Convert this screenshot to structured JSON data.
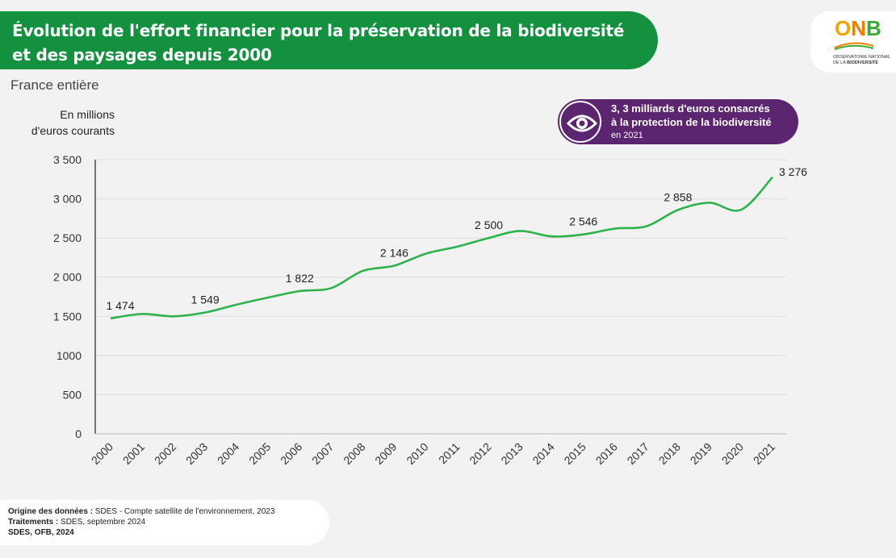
{
  "header": {
    "title_line1": "Évolution de l'effort financier pour la préservation de la biodiversité",
    "title_line2": "et des paysages depuis 2000",
    "accent_color": "#13913f"
  },
  "logo": {
    "letters": [
      "O",
      "N",
      "B"
    ],
    "subtitle_line1": "OBSERVATOIRE NATIONAL",
    "subtitle_line2a": "DE LA ",
    "subtitle_line2b": "BIODIVERSITÉ"
  },
  "subtitle": "France entière",
  "unit_label": {
    "line1": "En millions",
    "line2": "d'euros courants"
  },
  "callout": {
    "icon": "eye-icon",
    "line1": "3, 3 milliards d'euros consacrés",
    "line2": "à la protection de la biodiversité",
    "line3": "en 2021",
    "color": "#5b2570"
  },
  "chart_data": {
    "type": "line",
    "title": "",
    "xlabel": "",
    "ylabel": "",
    "ylim": [
      0,
      3500
    ],
    "yticks": [
      0,
      500,
      1000,
      1500,
      2000,
      2500,
      3000,
      3500
    ],
    "ytick_labels": [
      "0",
      "500",
      "1000",
      "1 500",
      "2 000",
      "2 500",
      "3 000",
      "3 500"
    ],
    "categories": [
      "2000",
      "2001",
      "2002",
      "2003",
      "2004",
      "2005",
      "2006",
      "2007",
      "2008",
      "2009",
      "2010",
      "2011",
      "2012",
      "2013",
      "2014",
      "2015",
      "2016",
      "2017",
      "2018",
      "2019",
      "2020",
      "2021"
    ],
    "series": [
      {
        "color": "#2db34a",
        "values": [
          1474,
          1530,
          1500,
          1549,
          1650,
          1740,
          1822,
          1860,
          2080,
          2146,
          2300,
          2390,
          2500,
          2590,
          2520,
          2546,
          2620,
          2650,
          2858,
          2950,
          2860,
          3276
        ]
      }
    ],
    "data_labels": [
      {
        "index": 0,
        "text": "1 474"
      },
      {
        "index": 3,
        "text": "1 549"
      },
      {
        "index": 6,
        "text": "1 822"
      },
      {
        "index": 9,
        "text": "2 146"
      },
      {
        "index": 12,
        "text": "2 500"
      },
      {
        "index": 15,
        "text": "2 546"
      },
      {
        "index": 18,
        "text": "2 858"
      },
      {
        "index": 21,
        "text": "3 276"
      }
    ],
    "grid": "horizontal"
  },
  "footer": {
    "line1_label": "Origine des données :",
    "line1_text": " SDES - Compte satellite de l'environnement, 2023",
    "line2_label": "Traitements :",
    "line2_text": " SDES, septembre 2024",
    "line3": "SDES, OFB, 2024"
  }
}
